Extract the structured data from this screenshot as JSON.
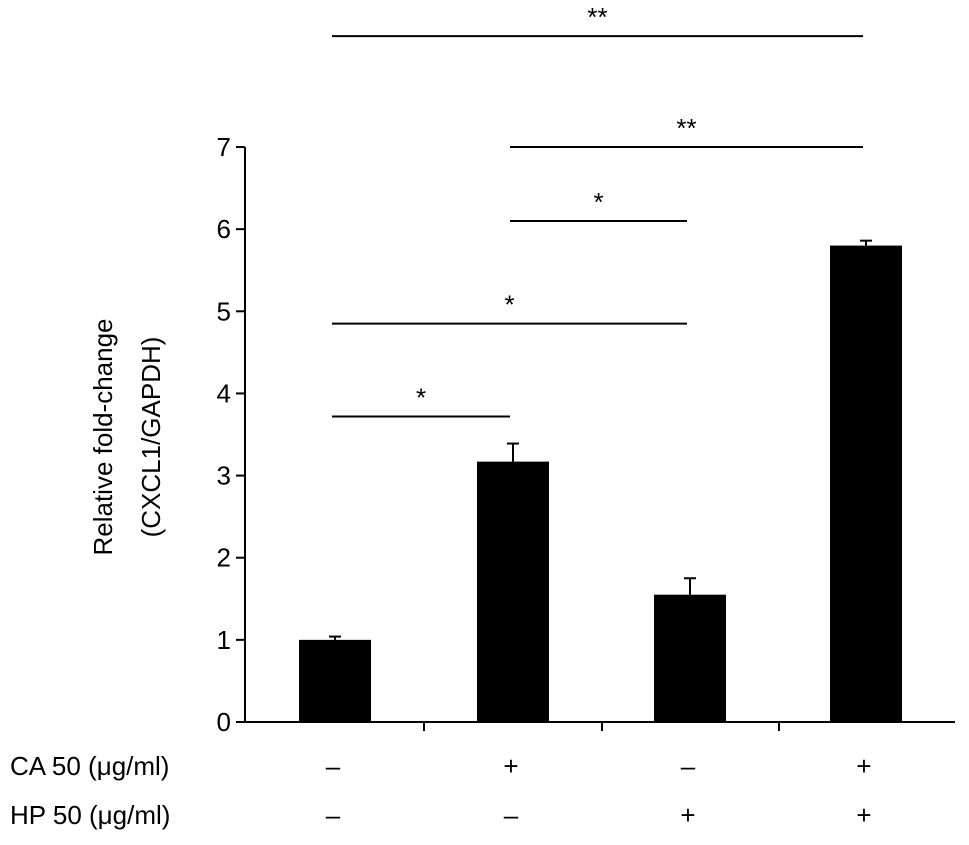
{
  "chart_data": {
    "type": "bar",
    "ylabel_lines": [
      "Relative fold-change",
      "(CXCL1/GAPDH)"
    ],
    "ylim": [
      0,
      7
    ],
    "yticks": [
      0,
      1,
      2,
      3,
      4,
      5,
      6,
      7
    ],
    "values": [
      1.0,
      3.17,
      1.55,
      5.8
    ],
    "errors": [
      0.04,
      0.22,
      0.2,
      0.06
    ],
    "bar_color": "#000000",
    "condition_rows": [
      {
        "label": "CA 50 (μg/ml)",
        "signs": [
          "–",
          "+",
          "–",
          "+"
        ]
      },
      {
        "label": "HP 50 (μg/ml)",
        "signs": [
          "–",
          "–",
          "+",
          "+"
        ]
      }
    ],
    "significance": [
      {
        "from": 0,
        "to": 3,
        "label": "**",
        "level": 8.35
      },
      {
        "from": 1,
        "to": 3,
        "label": "**",
        "level": 7.0
      },
      {
        "from": 1,
        "to": 2,
        "label": "*",
        "level": 6.1
      },
      {
        "from": 0,
        "to": 2,
        "label": "*",
        "level": 4.85
      },
      {
        "from": 0,
        "to": 1,
        "label": "*",
        "level": 3.72
      }
    ]
  }
}
